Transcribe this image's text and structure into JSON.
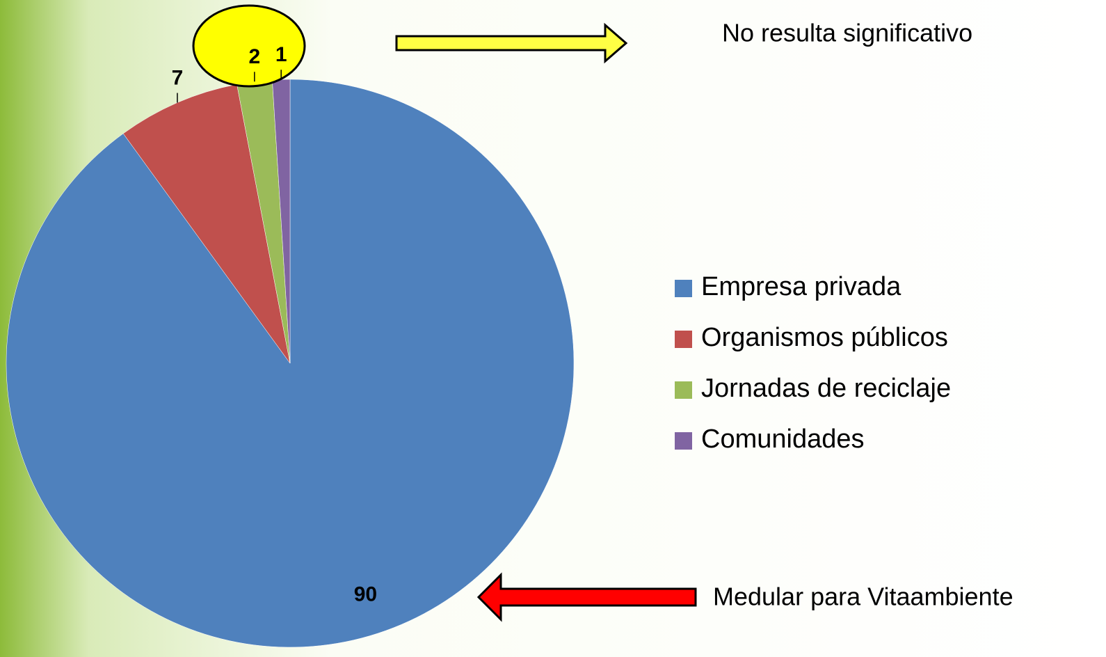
{
  "chart_data": {
    "type": "pie",
    "categories": [
      "Empresa privada",
      "Organismos públicos",
      "Jornadas de reciclaje",
      "Comunidades"
    ],
    "values": [
      90,
      7,
      2,
      1
    ],
    "colors": [
      "#4f81bd",
      "#c0504d",
      "#9bbb59",
      "#8064a2"
    ],
    "legend": "right",
    "annotations": [
      "No resulta significativo",
      "Medular para Vitaambiente"
    ]
  }
}
